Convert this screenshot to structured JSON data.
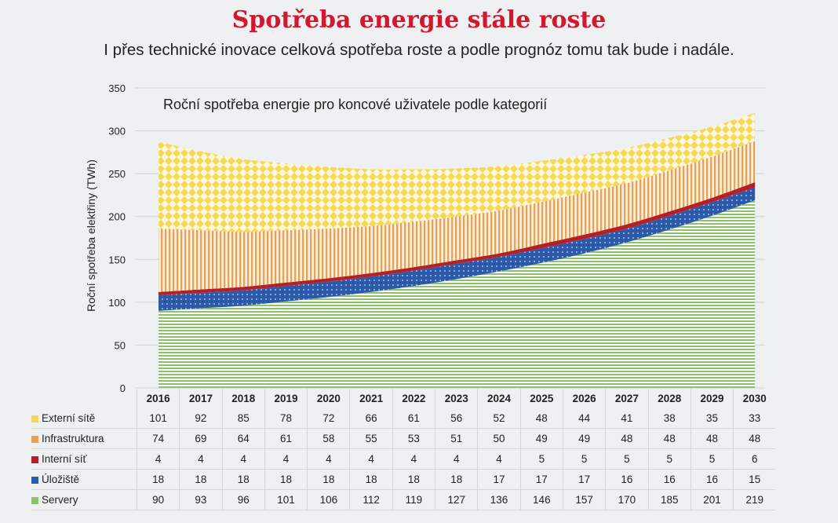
{
  "header": {
    "title": "Spotřeba energie stále roste",
    "subtitle": "I přes technické inovace celková spotřeba roste a podle prognóz tomu tak bude i nadále."
  },
  "chart_data": {
    "type": "area",
    "stacked": true,
    "title": "Roční spotřeba energie pro koncové uživatele podle kategorií",
    "xlabel": "",
    "ylabel": "Roční spotřeba elektřiny (TWh)",
    "ylim": [
      0,
      350
    ],
    "yticks": [
      "0",
      "50",
      "100",
      "150",
      "200",
      "250",
      "300",
      "350"
    ],
    "categories": [
      "2016",
      "2017",
      "2018",
      "2019",
      "2020",
      "2021",
      "2022",
      "2023",
      "2024",
      "2025",
      "2026",
      "2027",
      "2028",
      "2029",
      "2030"
    ],
    "series": [
      {
        "name": "Servery",
        "color": "#8cc26a",
        "values": [
          90,
          93,
          96,
          101,
          106,
          112,
          119,
          127,
          136,
          146,
          157,
          170,
          185,
          201,
          219
        ]
      },
      {
        "name": "Úložiště",
        "color": "#2c5aa8",
        "values": [
          18,
          18,
          18,
          18,
          18,
          18,
          18,
          18,
          17,
          17,
          17,
          16,
          16,
          16,
          15
        ]
      },
      {
        "name": "Interní síť",
        "color": "#b51f28",
        "values": [
          4,
          4,
          4,
          4,
          4,
          4,
          4,
          4,
          4,
          5,
          5,
          5,
          5,
          5,
          6
        ]
      },
      {
        "name": "Infrastruktura",
        "color": "#e9a155",
        "values": [
          74,
          69,
          64,
          61,
          58,
          55,
          53,
          51,
          50,
          49,
          49,
          48,
          48,
          48,
          48
        ]
      },
      {
        "name": "Externí sítě",
        "color": "#f3d85c",
        "values": [
          101,
          92,
          85,
          78,
          72,
          66,
          61,
          56,
          52,
          48,
          44,
          41,
          38,
          35,
          33
        ]
      }
    ],
    "grid": true,
    "legend": "table-bottom"
  }
}
